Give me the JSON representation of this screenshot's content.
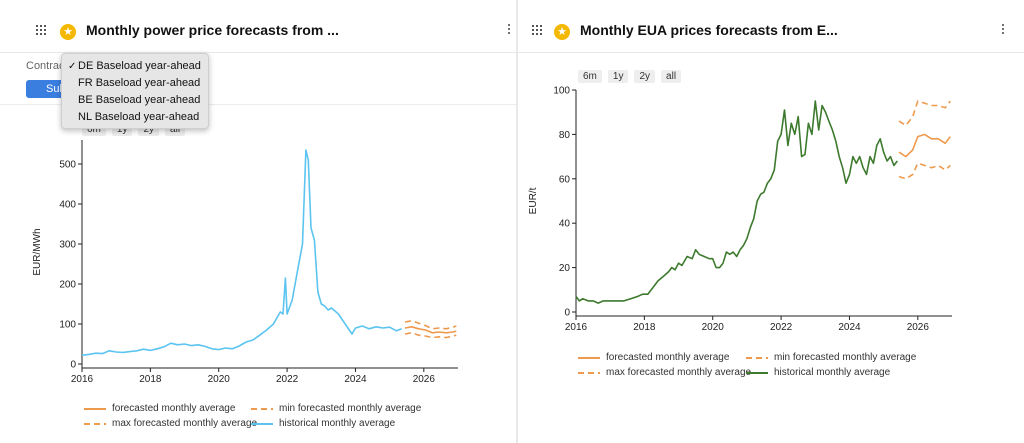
{
  "left_panel": {
    "title": "Monthly power price forecasts from ...",
    "controls_label": "Contrac",
    "submit_label": "Submit",
    "dropdown": {
      "selected_index": 0,
      "options": [
        "DE Baseload year-ahead",
        "FR Baseload year-ahead",
        "BE Baseload year-ahead",
        "NL Baseload year-ahead"
      ]
    },
    "range_buttons": [
      "6m",
      "1y",
      "2y",
      "all"
    ]
  },
  "right_panel": {
    "title": "Monthly EUA prices forecasts from E...",
    "range_buttons": [
      "6m",
      "1y",
      "2y",
      "all"
    ]
  },
  "colors": {
    "forecast": "#ee9a4d",
    "historical_power": "#5bc4f0",
    "historical_eua": "#3d7a2e",
    "accent_button": "#3a7ee0",
    "star": "#f5b800"
  },
  "chart_data": [
    {
      "type": "line",
      "title": "",
      "xlabel": "",
      "ylabel": "EUR/MWh",
      "xlim": [
        2016,
        2027
      ],
      "ylim": [
        0,
        560
      ],
      "x_ticks": [
        2016,
        2018,
        2020,
        2022,
        2024,
        2026
      ],
      "y_ticks": [
        0,
        100,
        200,
        300,
        400,
        500
      ],
      "grid": false,
      "legend_position": "bottom",
      "series": [
        {
          "name": "historical monthly average",
          "style": "solid",
          "color": "#5bc4f0",
          "x": [
            2016.0,
            2016.2,
            2016.4,
            2016.6,
            2016.8,
            2017.0,
            2017.2,
            2017.4,
            2017.6,
            2017.8,
            2018.0,
            2018.2,
            2018.4,
            2018.6,
            2018.8,
            2019.0,
            2019.2,
            2019.4,
            2019.6,
            2019.8,
            2020.0,
            2020.2,
            2020.4,
            2020.6,
            2020.8,
            2021.0,
            2021.2,
            2021.4,
            2021.6,
            2021.8,
            2021.88,
            2021.95,
            2022.0,
            2022.15,
            2022.3,
            2022.45,
            2022.55,
            2022.62,
            2022.7,
            2022.8,
            2022.9,
            2023.0,
            2023.1,
            2023.2,
            2023.3,
            2023.5,
            2023.7,
            2023.9,
            2024.0,
            2024.2,
            2024.4,
            2024.6,
            2024.8,
            2025.0,
            2025.2,
            2025.35
          ],
          "y": [
            22,
            24,
            27,
            26,
            33,
            30,
            29,
            31,
            33,
            37,
            34,
            38,
            43,
            52,
            48,
            50,
            46,
            48,
            44,
            38,
            36,
            40,
            38,
            45,
            55,
            60,
            72,
            85,
            100,
            130,
            125,
            215,
            125,
            160,
            230,
            300,
            535,
            510,
            340,
            310,
            180,
            150,
            145,
            135,
            140,
            125,
            100,
            75,
            90,
            95,
            88,
            93,
            90,
            92,
            83,
            88
          ]
        },
        {
          "name": "forecasted monthly average",
          "style": "solid",
          "color": "#ee9a4d",
          "x": [
            2025.45,
            2025.65,
            2025.85,
            2026.05,
            2026.25,
            2026.45,
            2026.65,
            2026.85,
            2026.95
          ],
          "y": [
            90,
            93,
            88,
            85,
            78,
            80,
            78,
            80,
            82
          ]
        },
        {
          "name": "min forecasted monthly average",
          "style": "dashed",
          "color": "#ee9a4d",
          "x": [
            2025.45,
            2025.65,
            2025.85,
            2026.05,
            2026.25,
            2026.45,
            2026.65,
            2026.85,
            2026.95
          ],
          "y": [
            75,
            78,
            72,
            70,
            66,
            68,
            66,
            70,
            72
          ]
        },
        {
          "name": "max forecasted monthly average",
          "style": "dashed",
          "color": "#ee9a4d",
          "x": [
            2025.45,
            2025.65,
            2025.85,
            2026.05,
            2026.25,
            2026.45,
            2026.65,
            2026.85,
            2026.95
          ],
          "y": [
            105,
            108,
            102,
            96,
            88,
            90,
            88,
            92,
            95
          ]
        }
      ]
    },
    {
      "type": "line",
      "title": "",
      "xlabel": "",
      "ylabel": "EUR/t",
      "xlim": [
        2016,
        2027
      ],
      "ylim": [
        0,
        100
      ],
      "x_ticks": [
        2016,
        2018,
        2020,
        2022,
        2024,
        2026
      ],
      "y_ticks": [
        0,
        20,
        40,
        60,
        80,
        100
      ],
      "grid": false,
      "legend_position": "bottom",
      "series": [
        {
          "name": "historical monthly average",
          "style": "solid",
          "color": "#3d7a2e",
          "x": [
            2016.0,
            2016.1,
            2016.2,
            2016.35,
            2016.5,
            2016.65,
            2016.8,
            2017.0,
            2017.2,
            2017.4,
            2017.6,
            2017.8,
            2017.95,
            2018.1,
            2018.25,
            2018.4,
            2018.55,
            2018.7,
            2018.8,
            2018.9,
            2019.0,
            2019.1,
            2019.25,
            2019.4,
            2019.5,
            2019.6,
            2019.75,
            2019.9,
            2020.0,
            2020.1,
            2020.2,
            2020.3,
            2020.4,
            2020.5,
            2020.6,
            2020.7,
            2020.8,
            2020.9,
            2021.0,
            2021.1,
            2021.2,
            2021.3,
            2021.4,
            2021.5,
            2021.6,
            2021.7,
            2021.8,
            2021.9,
            2022.0,
            2022.1,
            2022.2,
            2022.3,
            2022.4,
            2022.5,
            2022.6,
            2022.7,
            2022.8,
            2022.9,
            2023.0,
            2023.1,
            2023.2,
            2023.3,
            2023.4,
            2023.5,
            2023.6,
            2023.7,
            2023.8,
            2023.9,
            2024.0,
            2024.1,
            2024.2,
            2024.3,
            2024.4,
            2024.5,
            2024.6,
            2024.7,
            2024.8,
            2024.9,
            2025.0,
            2025.1,
            2025.2,
            2025.3,
            2025.4
          ],
          "y": [
            7,
            5,
            6,
            5,
            5,
            4,
            5,
            5,
            5,
            5,
            6,
            7,
            8,
            8,
            11,
            14,
            16,
            18,
            20,
            19,
            22,
            21,
            25,
            24,
            28,
            26,
            25,
            24,
            24,
            20,
            20,
            22,
            27,
            26,
            27,
            25,
            28,
            30,
            33,
            38,
            42,
            50,
            53,
            54,
            58,
            60,
            64,
            77,
            80,
            91,
            75,
            85,
            80,
            88,
            70,
            71,
            85,
            80,
            95,
            82,
            93,
            90,
            86,
            82,
            77,
            70,
            65,
            58,
            62,
            70,
            67,
            70,
            65,
            62,
            70,
            67,
            75,
            78,
            72,
            68,
            70,
            66,
            68
          ]
        },
        {
          "name": "forecasted monthly average",
          "style": "solid",
          "color": "#ee9a4d",
          "x": [
            2025.45,
            2025.65,
            2025.85,
            2026.0,
            2026.2,
            2026.4,
            2026.6,
            2026.8,
            2026.95
          ],
          "y": [
            72,
            70,
            73,
            79,
            80,
            78,
            78,
            76,
            79
          ]
        },
        {
          "name": "min forecasted monthly average",
          "style": "dashed",
          "color": "#ee9a4d",
          "x": [
            2025.45,
            2025.65,
            2025.85,
            2026.0,
            2026.2,
            2026.4,
            2026.6,
            2026.8,
            2026.95
          ],
          "y": [
            61,
            60,
            62,
            67,
            66,
            65,
            66,
            64,
            66
          ]
        },
        {
          "name": "max forecasted monthly average",
          "style": "dashed",
          "color": "#ee9a4d",
          "x": [
            2025.45,
            2025.65,
            2025.85,
            2026.0,
            2026.2,
            2026.4,
            2026.6,
            2026.8,
            2026.95
          ],
          "y": [
            86,
            84,
            88,
            95,
            94,
            93,
            93,
            92,
            95
          ]
        }
      ]
    }
  ],
  "legend": {
    "forecast": "forecasted monthly average",
    "min": "min forecasted monthly average",
    "max": "max forecasted monthly average",
    "historical": "historical monthly average"
  }
}
